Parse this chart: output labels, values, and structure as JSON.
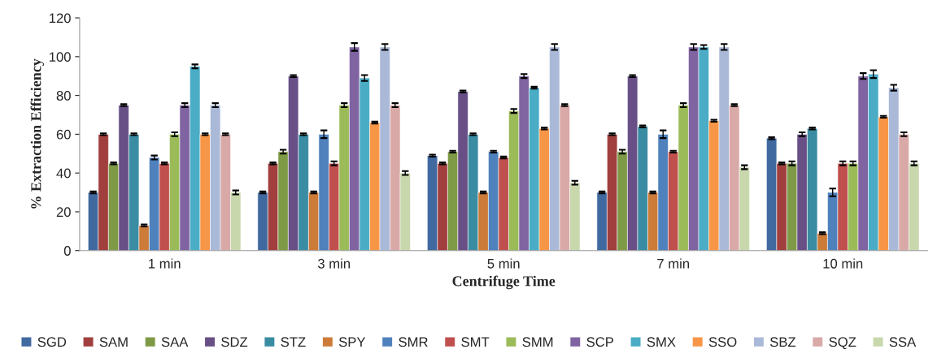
{
  "chart_data": {
    "type": "bar",
    "xlabel": "Centrifuge Time",
    "ylabel": "% Extraction Efficiency",
    "categories": [
      "1 min",
      "3 min",
      "5 min",
      "7 min",
      "10 min"
    ],
    "ylim": [
      0,
      120
    ],
    "yticks": [
      0,
      20,
      40,
      60,
      80,
      100,
      120
    ],
    "grid": false,
    "legend": "bottom",
    "series": [
      {
        "name": "SGD",
        "color": "#4069a0",
        "values": [
          30,
          30,
          49,
          30,
          58
        ],
        "errors": [
          0.5,
          0.5,
          0.5,
          0.5,
          0.5
        ]
      },
      {
        "name": "SAM",
        "color": "#a03f3d",
        "values": [
          60,
          45,
          45,
          60,
          45
        ],
        "errors": [
          0.5,
          0.5,
          0.5,
          0.5,
          0.5
        ]
      },
      {
        "name": "SAA",
        "color": "#7f9a47",
        "values": [
          45,
          51,
          51,
          51,
          45
        ],
        "errors": [
          0.5,
          1,
          0.5,
          1,
          1
        ]
      },
      {
        "name": "SDZ",
        "color": "#684f86",
        "values": [
          75,
          90,
          82,
          90,
          60
        ],
        "errors": [
          0.5,
          0.5,
          0.5,
          0.5,
          1
        ]
      },
      {
        "name": "STZ",
        "color": "#3a8ca3",
        "values": [
          60,
          60,
          60,
          64,
          63
        ],
        "errors": [
          0.5,
          0.5,
          0.5,
          0.5,
          0.5
        ]
      },
      {
        "name": "SPY",
        "color": "#cc7b38",
        "values": [
          13,
          30,
          30,
          30,
          9
        ],
        "errors": [
          0.5,
          0.5,
          0.5,
          0.5,
          0.5
        ]
      },
      {
        "name": "SMR",
        "color": "#4f81bd",
        "values": [
          48,
          60,
          51,
          60,
          30
        ],
        "errors": [
          1,
          2,
          0.5,
          2,
          2
        ]
      },
      {
        "name": "SMT",
        "color": "#c0504d",
        "values": [
          45,
          45,
          48,
          51,
          45
        ],
        "errors": [
          0.5,
          1,
          0.5,
          0.5,
          1
        ]
      },
      {
        "name": "SMM",
        "color": "#9bbb59",
        "values": [
          60,
          75,
          72,
          75,
          45
        ],
        "errors": [
          1,
          1,
          1,
          1,
          1
        ]
      },
      {
        "name": "SCP",
        "color": "#8064a2",
        "values": [
          75,
          105,
          90,
          105,
          90
        ],
        "errors": [
          1,
          2,
          1,
          1.5,
          1.5
        ]
      },
      {
        "name": "SMX",
        "color": "#4bacc6",
        "values": [
          95,
          89,
          84,
          105,
          91
        ],
        "errors": [
          1,
          1.5,
          0.5,
          1,
          2
        ]
      },
      {
        "name": "SSO",
        "color": "#f79646",
        "values": [
          60,
          66,
          63,
          67,
          69
        ],
        "errors": [
          0.5,
          0.5,
          0.5,
          0.5,
          0.5
        ]
      },
      {
        "name": "SBZ",
        "color": "#aab9d8",
        "values": [
          75,
          105,
          105,
          105,
          84
        ],
        "errors": [
          1,
          1.5,
          1.5,
          1.5,
          1.5
        ]
      },
      {
        "name": "SQZ",
        "color": "#d9a9a8",
        "values": [
          60,
          75,
          75,
          75,
          60
        ],
        "errors": [
          0.5,
          1,
          0.5,
          0.5,
          1
        ]
      },
      {
        "name": "SSA",
        "color": "#c8d8ac",
        "values": [
          30,
          40,
          35,
          43,
          45
        ],
        "errors": [
          1,
          1,
          1,
          1,
          1
        ]
      }
    ]
  }
}
